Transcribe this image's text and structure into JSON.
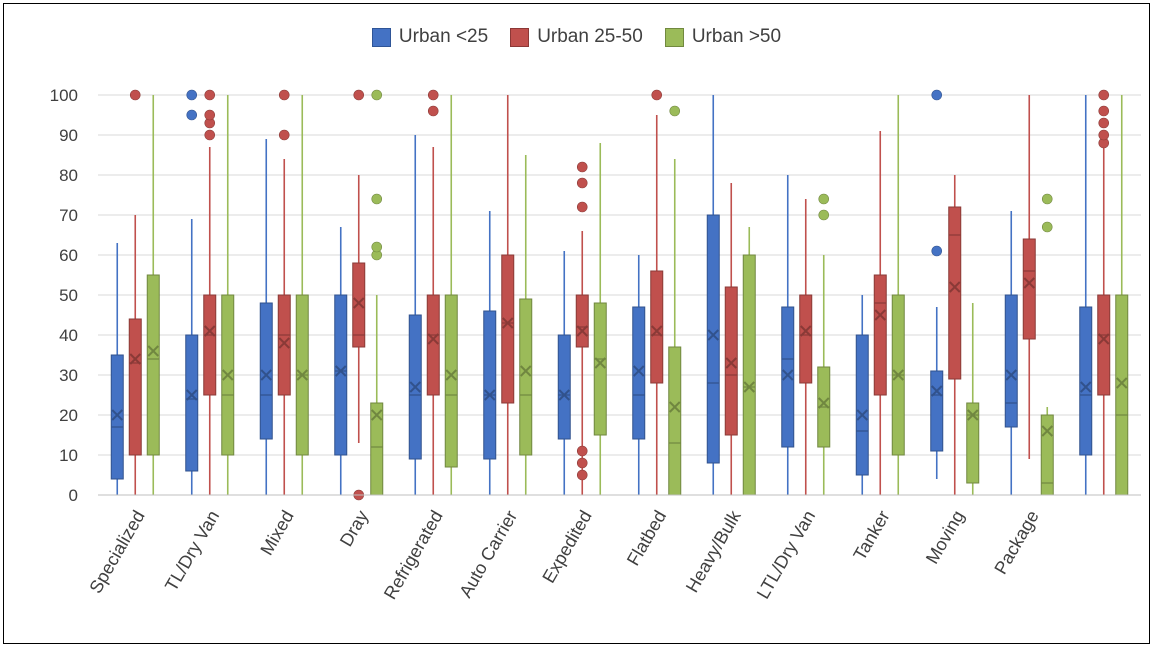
{
  "chart_data": {
    "type": "boxplot",
    "title": "",
    "xlabel": "",
    "ylabel": "",
    "ylim": [
      0,
      100
    ],
    "yticks": [
      0,
      10,
      20,
      30,
      40,
      50,
      60,
      70,
      80,
      90,
      100
    ],
    "grid": true,
    "legend_position": "top-center",
    "categories": [
      "Specialized",
      "TL/Dry Van",
      "Mixed",
      "Dray",
      "Refrigerated",
      "Auto Carrier",
      "Expedited",
      "Flatbed",
      "Heavy/Bulk",
      "LTL/Dry Van",
      "Tanker",
      "Moving",
      "Package",
      ""
    ],
    "series": [
      {
        "name": "Urban <25",
        "color": "#4472C4",
        "boxes": [
          {
            "min": 0,
            "q1": 4,
            "median": 17,
            "q3": 35,
            "max": 63,
            "mean": 20,
            "outliers": []
          },
          {
            "min": 0,
            "q1": 6,
            "median": 24,
            "q3": 40,
            "max": 69,
            "mean": 25,
            "outliers": [
              95,
              100
            ]
          },
          {
            "min": 0,
            "q1": 14,
            "median": 25,
            "q3": 48,
            "max": 89,
            "mean": 30,
            "outliers": []
          },
          {
            "min": 0,
            "q1": 10,
            "median": 31,
            "q3": 50,
            "max": 67,
            "mean": 31,
            "outliers": []
          },
          {
            "min": 0,
            "q1": 9,
            "median": 25,
            "q3": 45,
            "max": 90,
            "mean": 27,
            "outliers": []
          },
          {
            "min": 0,
            "q1": 9,
            "median": 25,
            "q3": 46,
            "max": 71,
            "mean": 25,
            "outliers": []
          },
          {
            "min": 0,
            "q1": 14,
            "median": 25,
            "q3": 40,
            "max": 61,
            "mean": 25,
            "outliers": []
          },
          {
            "min": 0,
            "q1": 14,
            "median": 25,
            "q3": 47,
            "max": 60,
            "mean": 31,
            "outliers": []
          },
          {
            "min": 0,
            "q1": 8,
            "median": 28,
            "q3": 70,
            "max": 100,
            "mean": 40,
            "outliers": []
          },
          {
            "min": 0,
            "q1": 12,
            "median": 34,
            "q3": 47,
            "max": 80,
            "mean": 30,
            "outliers": []
          },
          {
            "min": 0,
            "q1": 5,
            "median": 16,
            "q3": 40,
            "max": 50,
            "mean": 20,
            "outliers": []
          },
          {
            "min": 4,
            "q1": 11,
            "median": 25,
            "q3": 31,
            "max": 47,
            "mean": 26,
            "outliers": [
              61,
              100
            ]
          },
          {
            "min": 0,
            "q1": 17,
            "median": 23,
            "q3": 50,
            "max": 71,
            "mean": 30,
            "outliers": []
          },
          {
            "min": 0,
            "q1": 10,
            "median": 25,
            "q3": 47,
            "max": 100,
            "mean": 27,
            "outliers": []
          }
        ]
      },
      {
        "name": "Urban 25-50",
        "color": "#C0504D",
        "boxes": [
          {
            "min": 0,
            "q1": 10,
            "median": 33,
            "q3": 44,
            "max": 70,
            "mean": 34,
            "outliers": [
              100
            ]
          },
          {
            "min": 0,
            "q1": 25,
            "median": 40,
            "q3": 50,
            "max": 87,
            "mean": 41,
            "outliers": [
              90,
              93,
              95,
              100
            ]
          },
          {
            "min": 0,
            "q1": 25,
            "median": 40,
            "q3": 50,
            "max": 84,
            "mean": 38,
            "outliers": [
              90,
              100
            ]
          },
          {
            "min": 13,
            "q1": 37,
            "median": 40,
            "q3": 58,
            "max": 80,
            "mean": 48,
            "outliers": [
              0,
              100
            ]
          },
          {
            "min": 0,
            "q1": 25,
            "median": 40,
            "q3": 50,
            "max": 87,
            "mean": 39,
            "outliers": [
              96,
              100
            ]
          },
          {
            "min": 0,
            "q1": 23,
            "median": 43,
            "q3": 60,
            "max": 100,
            "mean": 43,
            "outliers": []
          },
          {
            "min": 0,
            "q1": 37,
            "median": 42,
            "q3": 50,
            "max": 66,
            "mean": 41,
            "outliers": [
              5,
              8,
              11,
              72,
              78,
              82
            ]
          },
          {
            "min": 0,
            "q1": 28,
            "median": 40,
            "q3": 56,
            "max": 95,
            "mean": 41,
            "outliers": [
              100
            ]
          },
          {
            "min": 0,
            "q1": 15,
            "median": 30,
            "q3": 52,
            "max": 78,
            "mean": 33,
            "outliers": []
          },
          {
            "min": 0,
            "q1": 28,
            "median": 40,
            "q3": 50,
            "max": 74,
            "mean": 41,
            "outliers": []
          },
          {
            "min": 0,
            "q1": 25,
            "median": 48,
            "q3": 55,
            "max": 91,
            "mean": 45,
            "outliers": []
          },
          {
            "min": 0,
            "q1": 29,
            "median": 65,
            "q3": 72,
            "max": 80,
            "mean": 52,
            "outliers": []
          },
          {
            "min": 9,
            "q1": 39,
            "median": 56,
            "q3": 64,
            "max": 100,
            "mean": 53,
            "outliers": []
          },
          {
            "min": 0,
            "q1": 25,
            "median": 40,
            "q3": 50,
            "max": 87,
            "mean": 39,
            "outliers": [
              88,
              90,
              93,
              96,
              100
            ]
          }
        ]
      },
      {
        "name": "Urban >50",
        "color": "#9BBB59",
        "boxes": [
          {
            "min": 0,
            "q1": 10,
            "median": 34,
            "q3": 55,
            "max": 100,
            "mean": 36,
            "outliers": []
          },
          {
            "min": 0,
            "q1": 10,
            "median": 25,
            "q3": 50,
            "max": 100,
            "mean": 30,
            "outliers": []
          },
          {
            "min": 0,
            "q1": 10,
            "median": 30,
            "q3": 50,
            "max": 100,
            "mean": 30,
            "outliers": []
          },
          {
            "min": 0,
            "q1": 0,
            "median": 12,
            "q3": 23,
            "max": 50,
            "mean": 20,
            "outliers": [
              60,
              62,
              74,
              100
            ]
          },
          {
            "min": 0,
            "q1": 7,
            "median": 25,
            "q3": 50,
            "max": 100,
            "mean": 30,
            "outliers": []
          },
          {
            "min": 0,
            "q1": 10,
            "median": 25,
            "q3": 49,
            "max": 85,
            "mean": 31,
            "outliers": []
          },
          {
            "min": 0,
            "q1": 15,
            "median": 34,
            "q3": 48,
            "max": 88,
            "mean": 33,
            "outliers": []
          },
          {
            "min": 0,
            "q1": 0,
            "median": 13,
            "q3": 37,
            "max": 84,
            "mean": 22,
            "outliers": [
              96
            ]
          },
          {
            "min": 0,
            "q1": 0,
            "median": 27,
            "q3": 60,
            "max": 67,
            "mean": 27,
            "outliers": []
          },
          {
            "min": 0,
            "q1": 12,
            "median": 22,
            "q3": 32,
            "max": 60,
            "mean": 23,
            "outliers": [
              70,
              74
            ]
          },
          {
            "min": 0,
            "q1": 10,
            "median": 30,
            "q3": 50,
            "max": 100,
            "mean": 30,
            "outliers": []
          },
          {
            "min": 0,
            "q1": 3,
            "median": 20,
            "q3": 23,
            "max": 48,
            "mean": 20,
            "outliers": []
          },
          {
            "min": 0,
            "q1": 0,
            "median": 3,
            "q3": 20,
            "max": 22,
            "mean": 16,
            "outliers": [
              67,
              74
            ]
          },
          {
            "min": 0,
            "q1": 0,
            "median": 20,
            "q3": 50,
            "max": 100,
            "mean": 28,
            "outliers": []
          }
        ]
      }
    ]
  }
}
